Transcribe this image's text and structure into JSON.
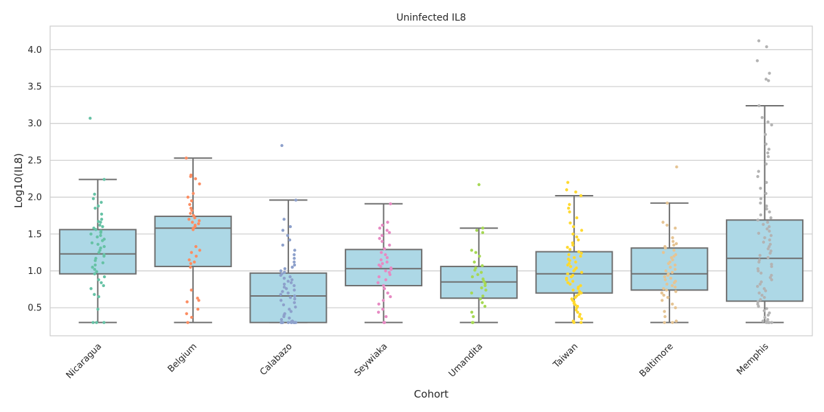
{
  "chart_data": {
    "type": "box",
    "title": "Uninfected IL8",
    "xlabel": "Cohort",
    "ylabel": "Log10(IL8)",
    "ylim": [
      0.12,
      4.32
    ],
    "yticks": [
      0.5,
      1.0,
      1.5,
      2.0,
      2.5,
      3.0,
      3.5,
      4.0
    ],
    "ytick_labels": [
      "0.5",
      "1.0",
      "1.5",
      "2.0",
      "2.5",
      "3.0",
      "3.5",
      "4.0"
    ],
    "grid": true,
    "box_color": "#add8e6",
    "box_edge_color": "#6e6e6e",
    "categories": [
      "Nicaragua",
      "Belgium",
      "Calabazo",
      "Seywiaka",
      "Umandita",
      "Taiwan",
      "Baltimore",
      "Memphis"
    ],
    "boxes": [
      {
        "category": "Nicaragua",
        "whisker_low": 0.3,
        "q1": 0.96,
        "median": 1.23,
        "q3": 1.56,
        "whisker_high": 2.24,
        "color": "#66c2a5",
        "points": [
          3.07,
          2.24,
          2.04,
          1.98,
          1.93,
          1.88,
          1.85,
          1.77,
          1.7,
          1.67,
          1.66,
          1.62,
          1.6,
          1.58,
          1.56,
          1.54,
          1.52,
          1.5,
          1.48,
          1.46,
          1.43,
          1.41,
          1.38,
          1.36,
          1.33,
          1.31,
          1.28,
          1.25,
          1.22,
          1.2,
          1.17,
          1.14,
          1.11,
          1.08,
          1.05,
          1.02,
          0.99,
          0.96,
          0.92,
          0.88,
          0.84,
          0.8,
          0.76,
          0.68,
          0.65,
          0.48,
          0.3,
          0.3,
          0.3
        ]
      },
      {
        "category": "Belgium",
        "whisker_low": 0.3,
        "q1": 1.06,
        "median": 1.58,
        "q3": 1.74,
        "whisker_high": 2.53,
        "color": "#fc8d62",
        "points": [
          2.53,
          2.3,
          2.28,
          2.25,
          2.18,
          2.05,
          2.0,
          1.95,
          1.9,
          1.85,
          1.82,
          1.78,
          1.75,
          1.72,
          1.7,
          1.68,
          1.66,
          1.64,
          1.62,
          1.6,
          1.58,
          1.56,
          1.33,
          1.28,
          1.25,
          1.2,
          1.15,
          1.12,
          1.1,
          1.05,
          0.74,
          0.63,
          0.6,
          0.58,
          0.48,
          0.42,
          0.37,
          0.3
        ]
      },
      {
        "category": "Calabazo",
        "whisker_low": 0.3,
        "q1": 0.3,
        "median": 0.66,
        "q3": 0.97,
        "whisker_high": 1.96,
        "color": "#8da0cb",
        "points": [
          2.7,
          1.96,
          1.7,
          1.6,
          1.55,
          1.48,
          1.42,
          1.35,
          1.28,
          1.22,
          1.17,
          1.12,
          1.08,
          1.05,
          1.03,
          1.0,
          0.98,
          0.96,
          0.94,
          0.92,
          0.9,
          0.88,
          0.86,
          0.84,
          0.82,
          0.8,
          0.78,
          0.76,
          0.74,
          0.72,
          0.7,
          0.68,
          0.66,
          0.64,
          0.62,
          0.6,
          0.57,
          0.54,
          0.51,
          0.48,
          0.45,
          0.42,
          0.4,
          0.38,
          0.36,
          0.34,
          0.32,
          0.31,
          0.3,
          0.3,
          0.3,
          0.3,
          0.3,
          0.3,
          0.3,
          0.3,
          0.3,
          0.3,
          0.3,
          0.3
        ]
      },
      {
        "category": "Seywiaka",
        "whisker_low": 0.3,
        "q1": 0.8,
        "median": 1.03,
        "q3": 1.29,
        "whisker_high": 1.91,
        "color": "#e78ac3",
        "points": [
          1.91,
          1.66,
          1.62,
          1.58,
          1.55,
          1.52,
          1.48,
          1.44,
          1.4,
          1.35,
          1.3,
          1.25,
          1.22,
          1.18,
          1.15,
          1.12,
          1.1,
          1.08,
          1.06,
          1.04,
          1.02,
          1.0,
          0.98,
          0.95,
          0.92,
          0.88,
          0.84,
          0.8,
          0.76,
          0.7,
          0.65,
          0.6,
          0.55,
          0.48,
          0.44,
          0.38,
          0.3,
          0.3
        ]
      },
      {
        "category": "Umandita",
        "whisker_low": 0.3,
        "q1": 0.63,
        "median": 0.85,
        "q3": 1.06,
        "whisker_high": 1.58,
        "color": "#a6d854",
        "points": [
          2.17,
          1.58,
          1.55,
          1.52,
          1.28,
          1.25,
          1.2,
          1.12,
          1.07,
          1.04,
          1.01,
          0.98,
          0.95,
          0.92,
          0.89,
          0.86,
          0.83,
          0.8,
          0.77,
          0.74,
          0.7,
          0.66,
          0.62,
          0.57,
          0.52,
          0.44,
          0.38,
          0.3,
          0.3
        ]
      },
      {
        "category": "Taiwan",
        "whisker_low": 0.3,
        "q1": 0.7,
        "median": 0.96,
        "q3": 1.26,
        "whisker_high": 2.02,
        "color": "#ffd92f",
        "points": [
          2.2,
          2.1,
          2.07,
          2.02,
          1.9,
          1.85,
          1.8,
          1.72,
          1.65,
          1.6,
          1.55,
          1.5,
          1.46,
          1.42,
          1.38,
          1.35,
          1.32,
          1.29,
          1.26,
          1.24,
          1.22,
          1.2,
          1.18,
          1.16,
          1.14,
          1.12,
          1.1,
          1.08,
          1.06,
          1.04,
          1.02,
          1.0,
          0.98,
          0.96,
          0.94,
          0.92,
          0.9,
          0.88,
          0.86,
          0.84,
          0.82,
          0.8,
          0.78,
          0.76,
          0.74,
          0.72,
          0.7,
          0.68,
          0.66,
          0.64,
          0.62,
          0.6,
          0.58,
          0.56,
          0.54,
          0.52,
          0.5,
          0.47,
          0.44,
          0.41,
          0.38,
          0.35,
          0.32,
          0.3,
          0.3
        ]
      },
      {
        "category": "Baltimore",
        "whisker_low": 0.3,
        "q1": 0.74,
        "median": 0.96,
        "q3": 1.31,
        "whisker_high": 1.92,
        "color": "#e5c494",
        "points": [
          2.41,
          1.92,
          1.66,
          1.62,
          1.58,
          1.45,
          1.4,
          1.37,
          1.35,
          1.33,
          1.31,
          1.28,
          1.25,
          1.22,
          1.2,
          1.18,
          1.15,
          1.12,
          1.1,
          1.08,
          1.05,
          1.02,
          1.0,
          0.98,
          0.96,
          0.94,
          0.92,
          0.9,
          0.88,
          0.86,
          0.84,
          0.82,
          0.8,
          0.78,
          0.76,
          0.74,
          0.72,
          0.7,
          0.67,
          0.64,
          0.6,
          0.55,
          0.5,
          0.45,
          0.38,
          0.32,
          0.3,
          0.3
        ]
      },
      {
        "category": "Memphis",
        "whisker_low": 0.3,
        "q1": 0.59,
        "median": 1.17,
        "q3": 1.69,
        "whisker_high": 3.24,
        "color": "#b3b3b3",
        "points": [
          4.12,
          4.04,
          3.85,
          3.68,
          3.6,
          3.58,
          3.24,
          3.08,
          3.02,
          2.98,
          2.85,
          2.72,
          2.65,
          2.6,
          2.55,
          2.45,
          2.35,
          2.28,
          2.2,
          2.12,
          2.05,
          1.98,
          1.92,
          1.88,
          1.84,
          1.8,
          1.76,
          1.72,
          1.69,
          1.66,
          1.63,
          1.6,
          1.57,
          1.54,
          1.51,
          1.48,
          1.45,
          1.42,
          1.39,
          1.36,
          1.33,
          1.3,
          1.27,
          1.24,
          1.21,
          1.18,
          1.15,
          1.12,
          1.09,
          1.06,
          1.03,
          1.0,
          0.97,
          0.94,
          0.91,
          0.88,
          0.85,
          0.82,
          0.79,
          0.76,
          0.73,
          0.7,
          0.67,
          0.64,
          0.61,
          0.58,
          0.55,
          0.52,
          0.49,
          0.46,
          0.43,
          0.4,
          0.37,
          0.34,
          0.32,
          0.31,
          0.3,
          0.3,
          0.3,
          0.3,
          0.3,
          0.3
        ]
      }
    ]
  }
}
